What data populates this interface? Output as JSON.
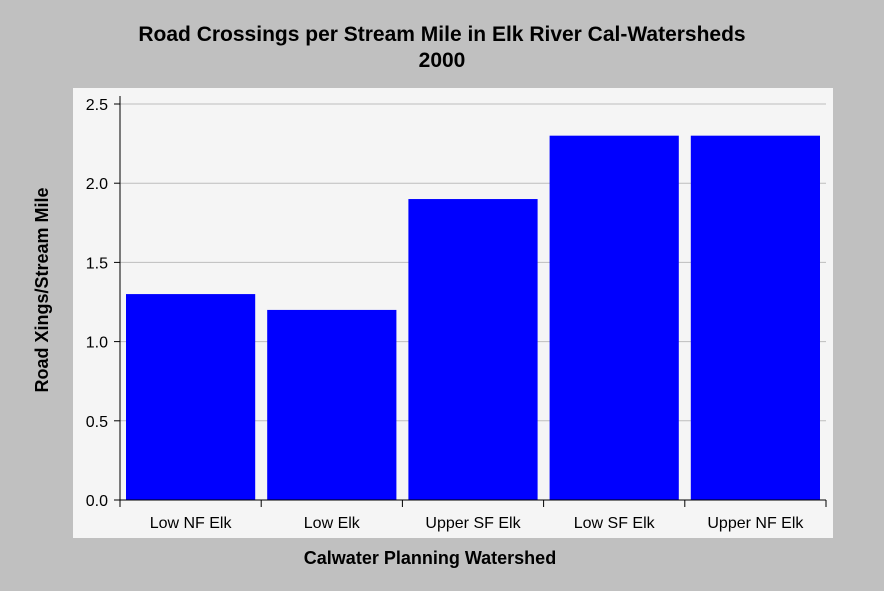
{
  "chart_data": {
    "type": "bar",
    "title": "Road Crossings per Stream Mile in Elk River Cal-Watersheds",
    "subtitle": "2000",
    "xlabel": "Calwater Planning Watershed",
    "ylabel": "Road Xings/Stream Mile",
    "categories": [
      "Low NF Elk",
      "Low Elk",
      "Upper SF Elk",
      "Low SF Elk",
      "Upper NF Elk"
    ],
    "values": [
      1.3,
      1.2,
      1.9,
      2.3,
      2.3
    ],
    "ylim": [
      0,
      2.5
    ],
    "yticks": [
      "0.0",
      "0.5",
      "1.0",
      "1.5",
      "2.0",
      "2.5"
    ],
    "grid": true,
    "bar_color": "#0000ff",
    "plot_background": "#f5f5f5",
    "page_background": "#c0c0c0"
  }
}
